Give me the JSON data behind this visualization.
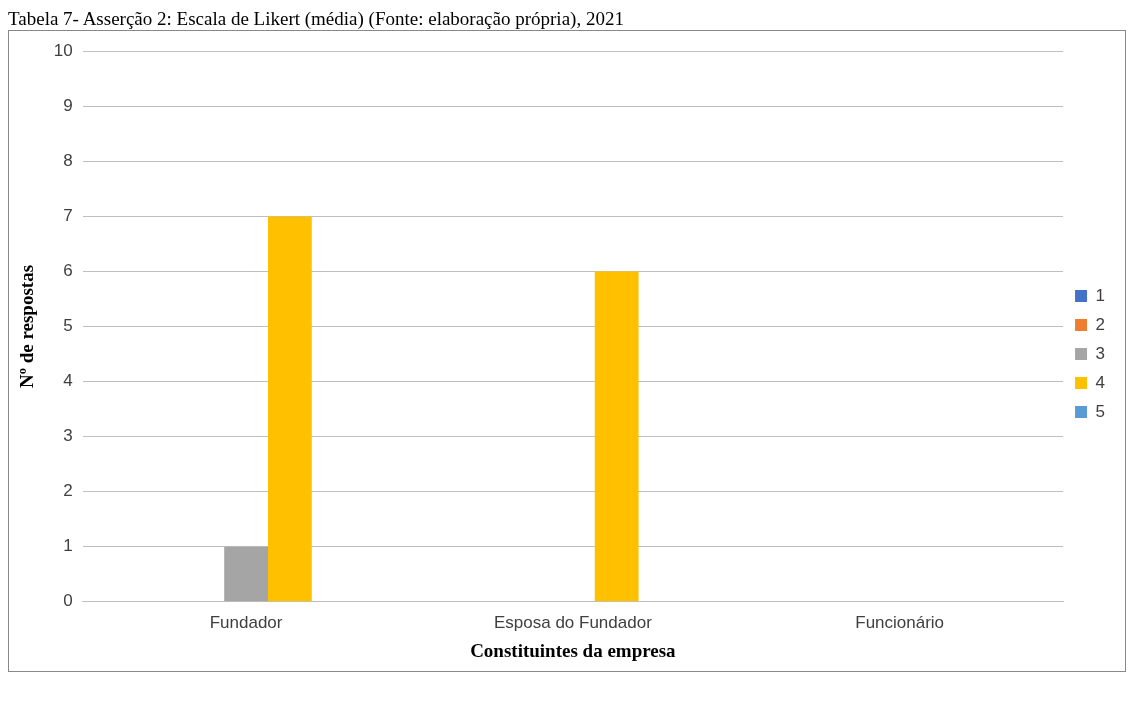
{
  "chart_data": {
    "type": "bar",
    "title": "Tabela 7- Asserção 2: Escala de Likert (média) (Fonte: elaboração própria), 2021",
    "xlabel": "Constituintes da empresa",
    "ylabel": "Nº de respostas",
    "categories": [
      "Fundador",
      "Esposa do Fundador",
      "Funcionário"
    ],
    "series": [
      {
        "name": "1",
        "color": "#4472c4",
        "values": [
          0,
          0,
          0
        ]
      },
      {
        "name": "2",
        "color": "#ed7d31",
        "values": [
          0,
          0,
          0
        ]
      },
      {
        "name": "3",
        "color": "#a5a5a5",
        "values": [
          1,
          0,
          0
        ]
      },
      {
        "name": "4",
        "color": "#ffc000",
        "values": [
          7,
          6,
          0
        ]
      },
      {
        "name": "5",
        "color": "#5b9bd5",
        "values": [
          0,
          0,
          0
        ]
      }
    ],
    "ylim": [
      0,
      10
    ],
    "yticks": [
      0,
      1,
      2,
      3,
      4,
      5,
      6,
      7,
      8,
      9,
      10
    ],
    "grid": "y",
    "legend": "right"
  }
}
